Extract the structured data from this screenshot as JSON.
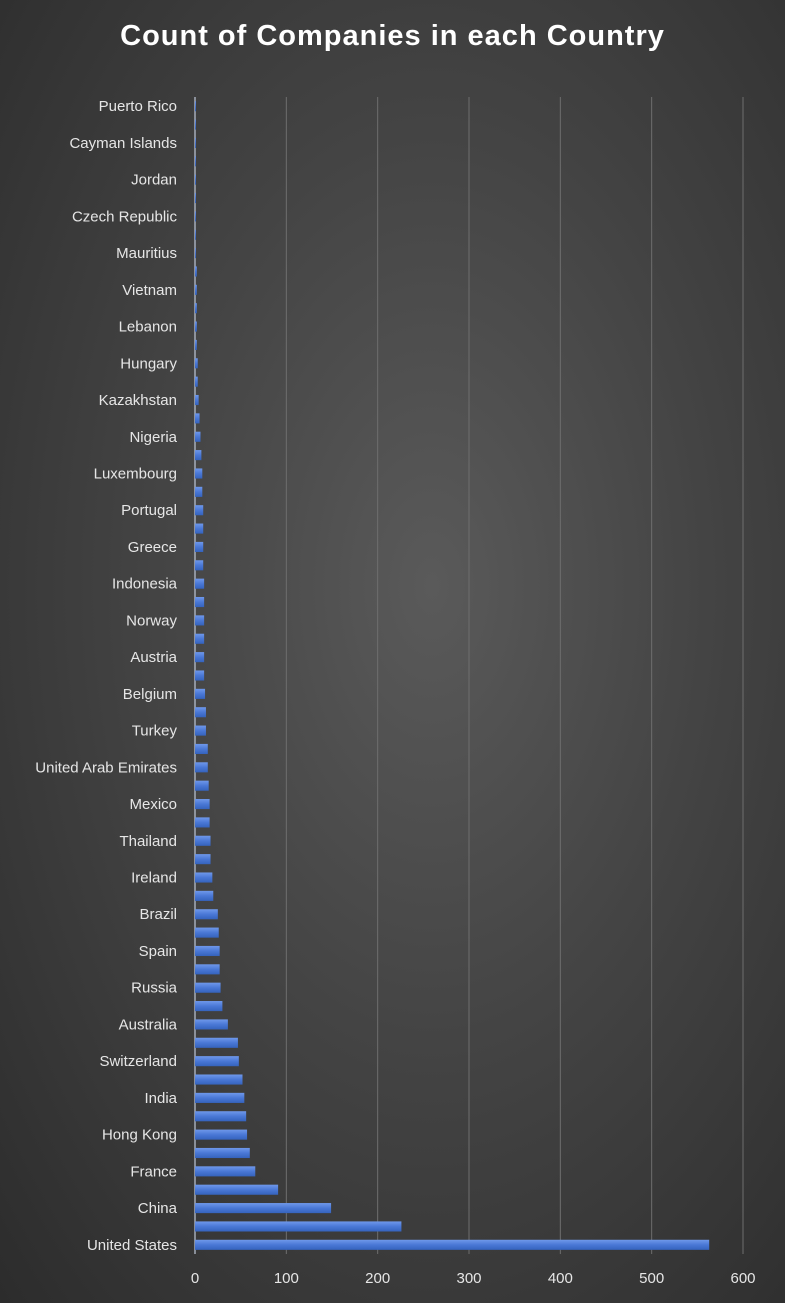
{
  "chart_data": {
    "type": "bar",
    "orientation": "horizontal",
    "title": "Count of Companies in each Country",
    "xlabel": "",
    "ylabel": "",
    "xlim": [
      0,
      600
    ],
    "xticks": [
      0,
      100,
      200,
      300,
      400,
      500,
      600
    ],
    "grid": "vertical",
    "legend": "none",
    "bar_color": "#4a78d6",
    "categories": [
      "United States",
      "",
      "China",
      "",
      "France",
      "",
      "Hong Kong",
      "",
      "India",
      "",
      "Switzerland",
      "",
      "Australia",
      "",
      "Russia",
      "",
      "Spain",
      "",
      "Brazil",
      "",
      "Ireland",
      "",
      "Thailand",
      "",
      "Mexico",
      "",
      "United Arab Emirates",
      "",
      "Turkey",
      "",
      "Belgium",
      "",
      "Austria",
      "",
      "Norway",
      "",
      "Indonesia",
      "",
      "Greece",
      "",
      "Portugal",
      "",
      "Luxembourg",
      "",
      "Nigeria",
      "",
      "Kazakhstan",
      "",
      "Hungary",
      "",
      "Lebanon",
      "",
      "Vietnam",
      "",
      "Mauritius",
      "",
      "Czech Republic",
      "",
      "Jordan",
      "",
      "Cayman Islands",
      "",
      "Puerto Rico"
    ],
    "values": [
      563,
      226,
      149,
      91,
      66,
      60,
      57,
      56,
      54,
      52,
      48,
      47,
      36,
      30,
      28,
      27,
      27,
      26,
      25,
      20,
      19,
      17,
      17,
      16,
      16,
      15,
      14,
      14,
      12,
      12,
      11,
      10,
      10,
      10,
      10,
      10,
      10,
      9,
      9,
      9,
      9,
      8,
      8,
      7,
      6,
      5,
      4,
      3,
      3,
      2,
      2,
      2,
      2,
      2,
      1,
      1,
      1,
      1,
      1,
      1,
      1,
      1,
      1
    ]
  }
}
